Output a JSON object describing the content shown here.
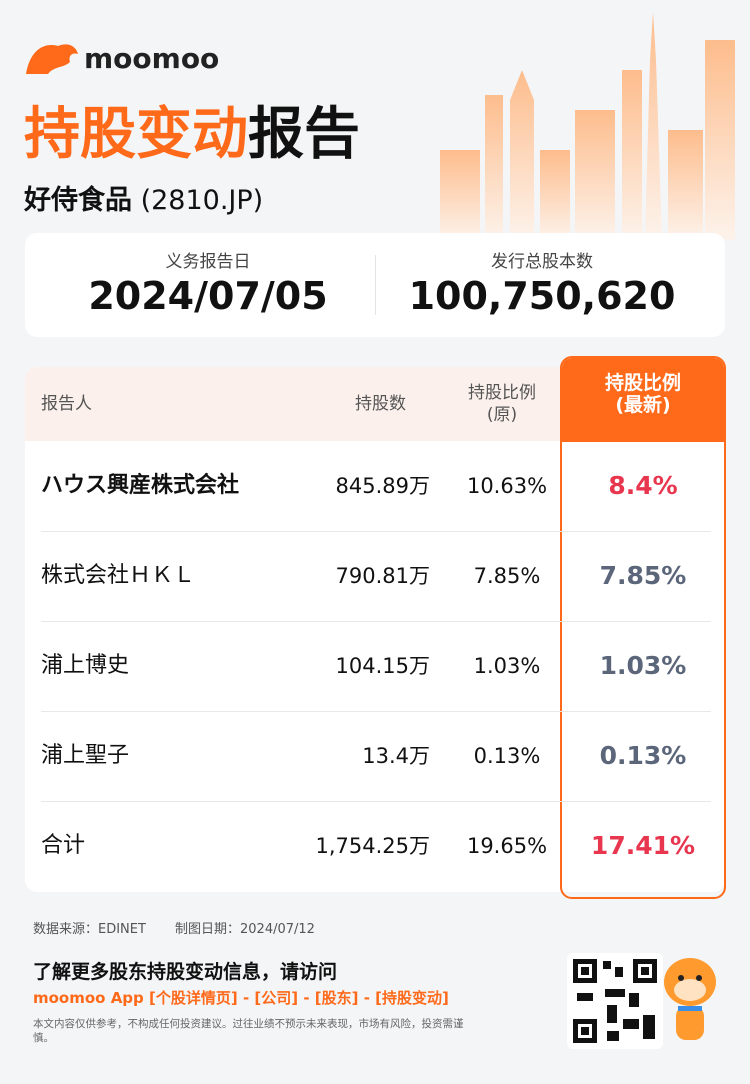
{
  "brand": "moomoo",
  "header": {
    "title_highlight": "持股变动",
    "title_rest": "报告",
    "company": "好侍食品",
    "code": "(2810.JP)"
  },
  "summary": [
    {
      "label": "义务报告日",
      "value": "2024/07/05"
    },
    {
      "label": "发行总股本数",
      "value": "100,750,620"
    }
  ],
  "table": {
    "headers": [
      [
        "报告人"
      ],
      [
        "持股数"
      ],
      [
        "持股比例",
        "(原)"
      ],
      [
        "持股比例",
        "(最新)"
      ]
    ],
    "rows": [
      {
        "name": "ハウス興産株式会社",
        "shares": "845.89万",
        "ratio_old": "10.63%",
        "ratio_new": "8.4%",
        "color": "#e8364f",
        "bold": true
      },
      {
        "name": "株式会社ＨＫＬ",
        "shares": "790.81万",
        "ratio_old": "7.85%",
        "ratio_new": "7.85%",
        "color": "#5b667a",
        "bold": false
      },
      {
        "name": "浦上博史",
        "shares": "104.15万",
        "ratio_old": "1.03%",
        "ratio_new": "1.03%",
        "color": "#5b667a",
        "bold": false
      },
      {
        "name": "浦上聖子",
        "shares": "13.4万",
        "ratio_old": "0.13%",
        "ratio_new": "0.13%",
        "color": "#5b667a",
        "bold": false
      },
      {
        "name": "合计",
        "shares": "1,754.25万",
        "ratio_old": "19.65%",
        "ratio_new": "17.41%",
        "color": "#e8364f",
        "bold": false
      }
    ]
  },
  "footer": {
    "source": "数据来源：EDINET",
    "date": "制图日期：2024/07/12",
    "cta": "了解更多股东持股变动信息，请访问",
    "path": "moomoo App [个股详情页] - [公司] - [股东] - [持股变动]",
    "disclaimer": "本文内容仅供参考，不构成任何投资建议。过往业绩不预示未来表现，市场有风险，投资需谨慎。"
  }
}
